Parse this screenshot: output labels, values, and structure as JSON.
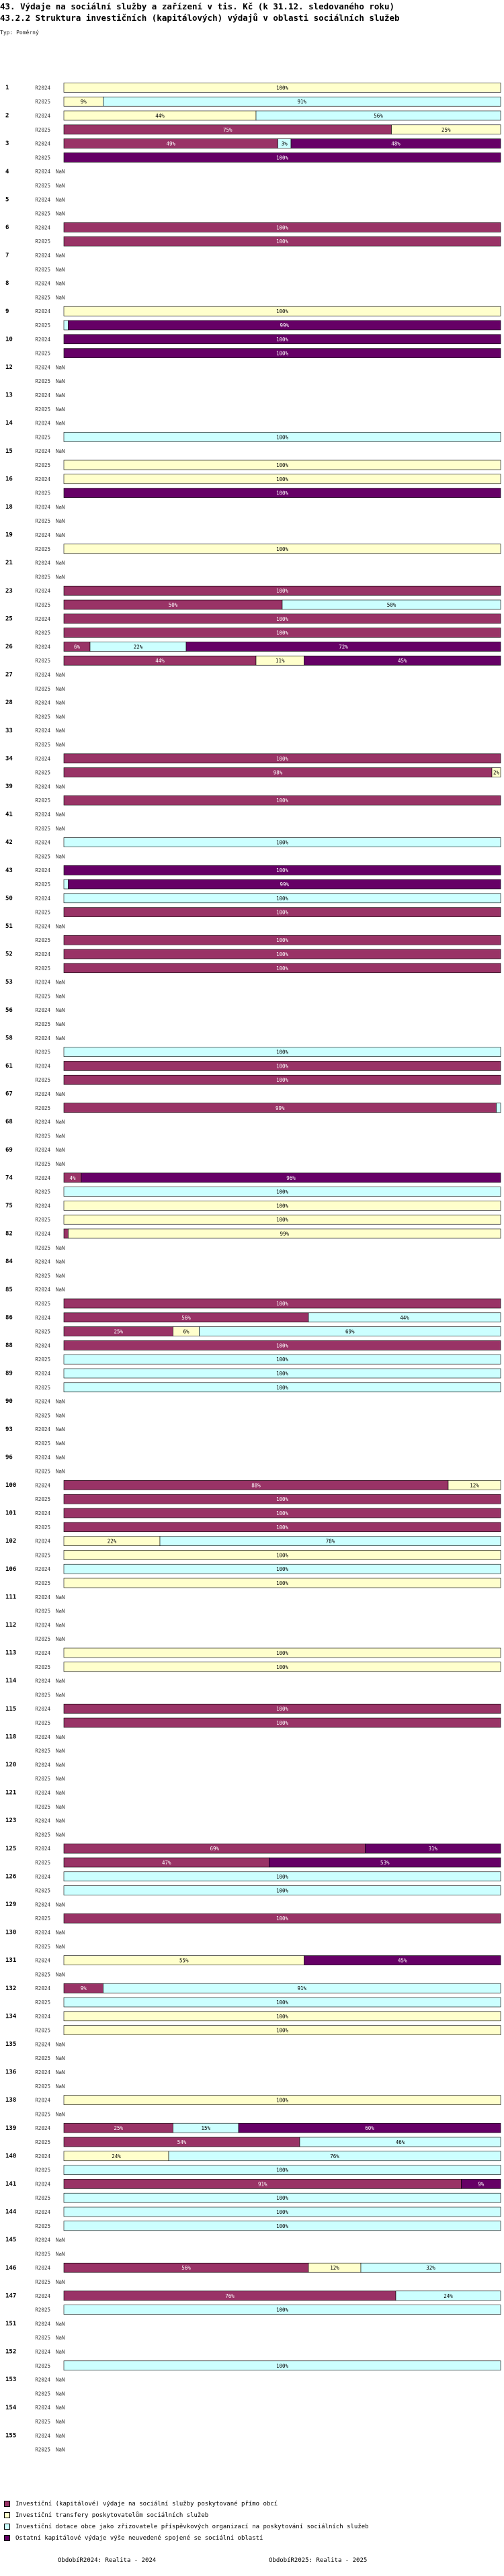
{
  "page": {
    "title_line1": "43. Výdaje na sociální služby a zařízení v tis. Kč (k 31.12. sledovaného roku)",
    "title_line2": "43.2.2 Struktura investičních (kapitálových) výdajů v oblasti sociálních služeb",
    "type_label": "Typ: Poměrný",
    "footer_left": "ObdobíR2024: Realita - 2024",
    "footer_right": "ObdobíR2025: Realita - 2025"
  },
  "colors": {
    "c1": "#993366",
    "c2": "#ffffcc",
    "c3": "#ccffff",
    "c4": "#660066"
  },
  "chart_data": {
    "type": "bar",
    "orientation": "horizontal",
    "stacked": true,
    "normalized_percent": true,
    "title": "43.2.2 Struktura investičních (kapitálových) výdajů v oblasti sociálních služeb",
    "periods": [
      "R2024",
      "R2025"
    ],
    "series": [
      {
        "name": "Investiční (kapitálové) výdaje na sociální služby poskytované přímo obcí",
        "color_key": "c1"
      },
      {
        "name": "Investiční transfery poskytovatelům sociálních služeb",
        "color_key": "c2"
      },
      {
        "name": "Investiční dotace obce jako zřizovatele příspěvkových organizací na poskytování sociálních služeb",
        "color_key": "c3"
      },
      {
        "name": "Ostatní kapitálové výdaje výše neuvedené spojené se sociální oblastí",
        "color_key": "c4"
      }
    ],
    "rows": [
      {
        "id": "1",
        "r2024": [
          0,
          100,
          0,
          0
        ],
        "r2025": [
          0,
          9,
          91,
          0
        ]
      },
      {
        "id": "2",
        "r2024": [
          0,
          44,
          56,
          0
        ],
        "r2025": [
          75,
          25,
          0,
          0
        ]
      },
      {
        "id": "3",
        "r2024": [
          49,
          0,
          3,
          48
        ],
        "r2025": [
          0,
          0,
          0,
          100
        ]
      },
      {
        "id": "4",
        "r2024": null,
        "r2025": null
      },
      {
        "id": "5",
        "r2024": null,
        "r2025": null
      },
      {
        "id": "6",
        "r2024": [
          100,
          0,
          0,
          0
        ],
        "r2025": [
          100,
          0,
          0,
          0
        ]
      },
      {
        "id": "7",
        "r2024": null,
        "r2025": null
      },
      {
        "id": "8",
        "r2024": null,
        "r2025": null
      },
      {
        "id": "9",
        "r2024": [
          0,
          100,
          0,
          0
        ],
        "r2025": [
          0,
          0,
          1,
          99
        ]
      },
      {
        "id": "10",
        "r2024": [
          0,
          0,
          0,
          100
        ],
        "r2025": [
          0,
          0,
          0,
          100
        ]
      },
      {
        "id": "12",
        "r2024": null,
        "r2025": null
      },
      {
        "id": "13",
        "r2024": null,
        "r2025": null
      },
      {
        "id": "14",
        "r2024": null,
        "r2025": [
          0,
          0,
          100,
          0
        ]
      },
      {
        "id": "15",
        "r2024": null,
        "r2025": [
          0,
          100,
          0,
          0
        ]
      },
      {
        "id": "16",
        "r2024": [
          0,
          100,
          0,
          0
        ],
        "r2025": [
          0,
          0,
          0,
          100
        ]
      },
      {
        "id": "18",
        "r2024": null,
        "r2025": null
      },
      {
        "id": "19",
        "r2024": null,
        "r2025": [
          0,
          100,
          0,
          0
        ]
      },
      {
        "id": "21",
        "r2024": null,
        "r2025": null
      },
      {
        "id": "23",
        "r2024": [
          100,
          0,
          0,
          0
        ],
        "r2025": [
          50,
          0,
          50,
          0
        ]
      },
      {
        "id": "25",
        "r2024": [
          100,
          0,
          0,
          0
        ],
        "r2025": [
          100,
          0,
          0,
          0
        ]
      },
      {
        "id": "26",
        "r2024": [
          6,
          0,
          22,
          72
        ],
        "r2025": [
          44,
          11,
          0,
          45
        ]
      },
      {
        "id": "27",
        "r2024": null,
        "r2025": null
      },
      {
        "id": "28",
        "r2024": null,
        "r2025": null
      },
      {
        "id": "33",
        "r2024": null,
        "r2025": null
      },
      {
        "id": "34",
        "r2024": [
          100,
          0,
          0,
          0
        ],
        "r2025": [
          98,
          2,
          0,
          0
        ]
      },
      {
        "id": "39",
        "r2024": null,
        "r2025": [
          100,
          0,
          0,
          0
        ]
      },
      {
        "id": "41",
        "r2024": null,
        "r2025": null
      },
      {
        "id": "42",
        "r2024": [
          0,
          0,
          100,
          0
        ],
        "r2025": null
      },
      {
        "id": "43",
        "r2024": [
          0,
          0,
          0,
          100
        ],
        "r2025": [
          0,
          0,
          1,
          99
        ]
      },
      {
        "id": "50",
        "r2024": [
          0,
          0,
          100,
          0
        ],
        "r2025": [
          100,
          0,
          0,
          0
        ]
      },
      {
        "id": "51",
        "r2024": null,
        "r2025": [
          100,
          0,
          0,
          0
        ]
      },
      {
        "id": "52",
        "r2024": [
          100,
          0,
          0,
          0
        ],
        "r2025": [
          100,
          0,
          0,
          0
        ]
      },
      {
        "id": "53",
        "r2024": null,
        "r2025": null
      },
      {
        "id": "56",
        "r2024": null,
        "r2025": null
      },
      {
        "id": "58",
        "r2024": null,
        "r2025": [
          0,
          0,
          100,
          0
        ]
      },
      {
        "id": "61",
        "r2024": [
          100,
          0,
          0,
          0
        ],
        "r2025": [
          100,
          0,
          0,
          0
        ]
      },
      {
        "id": "67",
        "r2024": null,
        "r2025": [
          99,
          0,
          1,
          0
        ]
      },
      {
        "id": "68",
        "r2024": null,
        "r2025": null
      },
      {
        "id": "69",
        "r2024": null,
        "r2025": null
      },
      {
        "id": "74",
        "r2024": [
          4,
          0,
          0,
          96
        ],
        "r2025": [
          0,
          0,
          100,
          0
        ]
      },
      {
        "id": "75",
        "r2024": [
          0,
          100,
          0,
          0
        ],
        "r2025": [
          0,
          100,
          0,
          0
        ]
      },
      {
        "id": "82",
        "r2024": [
          1,
          99,
          0,
          0
        ],
        "r2025": null
      },
      {
        "id": "84",
        "r2024": null,
        "r2025": null
      },
      {
        "id": "85",
        "r2024": null,
        "r2025": [
          100,
          0,
          0,
          0
        ]
      },
      {
        "id": "86",
        "r2024": [
          56,
          0,
          44,
          0
        ],
        "r2025": [
          25,
          6,
          69,
          0
        ]
      },
      {
        "id": "88",
        "r2024": [
          100,
          0,
          0,
          0
        ],
        "r2025": [
          0,
          0,
          100,
          0
        ]
      },
      {
        "id": "89",
        "r2024": [
          0,
          0,
          100,
          0
        ],
        "r2025": [
          0,
          0,
          100,
          0
        ]
      },
      {
        "id": "90",
        "r2024": null,
        "r2025": null
      },
      {
        "id": "93",
        "r2024": null,
        "r2025": null
      },
      {
        "id": "96",
        "r2024": null,
        "r2025": null
      },
      {
        "id": "100",
        "r2024": [
          88,
          12,
          0,
          0
        ],
        "r2025": [
          100,
          0,
          0,
          0
        ]
      },
      {
        "id": "101",
        "r2024": [
          100,
          0,
          0,
          0
        ],
        "r2025": [
          100,
          0,
          0,
          0
        ]
      },
      {
        "id": "102",
        "r2024": [
          0,
          22,
          78,
          0
        ],
        "r2025": [
          0,
          100,
          0,
          0
        ]
      },
      {
        "id": "106",
        "r2024": [
          0,
          0,
          100,
          0
        ],
        "r2025": [
          0,
          100,
          0,
          0
        ]
      },
      {
        "id": "111",
        "r2024": null,
        "r2025": null
      },
      {
        "id": "112",
        "r2024": null,
        "r2025": null
      },
      {
        "id": "113",
        "r2024": [
          0,
          100,
          0,
          0
        ],
        "r2025": [
          0,
          100,
          0,
          0
        ]
      },
      {
        "id": "114",
        "r2024": null,
        "r2025": null
      },
      {
        "id": "115",
        "r2024": [
          100,
          0,
          0,
          0
        ],
        "r2025": [
          100,
          0,
          0,
          0
        ]
      },
      {
        "id": "118",
        "r2024": null,
        "r2025": null
      },
      {
        "id": "120",
        "r2024": null,
        "r2025": null
      },
      {
        "id": "121",
        "r2024": null,
        "r2025": null
      },
      {
        "id": "123",
        "r2024": null,
        "r2025": null
      },
      {
        "id": "125",
        "r2024": [
          69,
          0,
          0,
          31
        ],
        "r2025": [
          47,
          0,
          0,
          53
        ]
      },
      {
        "id": "126",
        "r2024": [
          0,
          0,
          100,
          0
        ],
        "r2025": [
          0,
          0,
          100,
          0
        ]
      },
      {
        "id": "129",
        "r2024": null,
        "r2025": [
          100,
          0,
          0,
          0
        ]
      },
      {
        "id": "130",
        "r2024": null,
        "r2025": null
      },
      {
        "id": "131",
        "r2024": [
          0,
          55,
          0,
          45
        ],
        "r2025": null
      },
      {
        "id": "132",
        "r2024": [
          9,
          0,
          91,
          0
        ],
        "r2025": [
          0,
          0,
          100,
          0
        ]
      },
      {
        "id": "134",
        "r2024": [
          0,
          100,
          0,
          0
        ],
        "r2025": [
          0,
          100,
          0,
          0
        ]
      },
      {
        "id": "135",
        "r2024": null,
        "r2025": null
      },
      {
        "id": "136",
        "r2024": null,
        "r2025": null
      },
      {
        "id": "138",
        "r2024": [
          0,
          100,
          0,
          0
        ],
        "r2025": null
      },
      {
        "id": "139",
        "r2024": [
          25,
          0,
          15,
          60
        ],
        "r2025": [
          54,
          0,
          46,
          0
        ]
      },
      {
        "id": "140",
        "r2024": [
          0,
          24,
          76,
          0
        ],
        "r2025": [
          0,
          0,
          100,
          0
        ]
      },
      {
        "id": "141",
        "r2024": [
          91,
          0,
          0,
          9
        ],
        "r2025": [
          0,
          0,
          100,
          0
        ]
      },
      {
        "id": "144",
        "r2024": [
          0,
          0,
          100,
          0
        ],
        "r2025": [
          0,
          0,
          100,
          0
        ]
      },
      {
        "id": "145",
        "r2024": null,
        "r2025": null
      },
      {
        "id": "146",
        "r2024": [
          56,
          12,
          32,
          0
        ],
        "r2025": null
      },
      {
        "id": "147",
        "r2024": [
          76,
          0,
          24,
          0
        ],
        "r2025": [
          0,
          0,
          100,
          0
        ]
      },
      {
        "id": "151",
        "r2024": null,
        "r2025": null
      },
      {
        "id": "152",
        "r2024": null,
        "r2025": [
          0,
          0,
          100,
          0
        ]
      },
      {
        "id": "153",
        "r2024": null,
        "r2025": null
      },
      {
        "id": "154",
        "r2024": null,
        "r2025": null
      },
      {
        "id": "155",
        "r2024": null,
        "r2025": null
      }
    ]
  }
}
